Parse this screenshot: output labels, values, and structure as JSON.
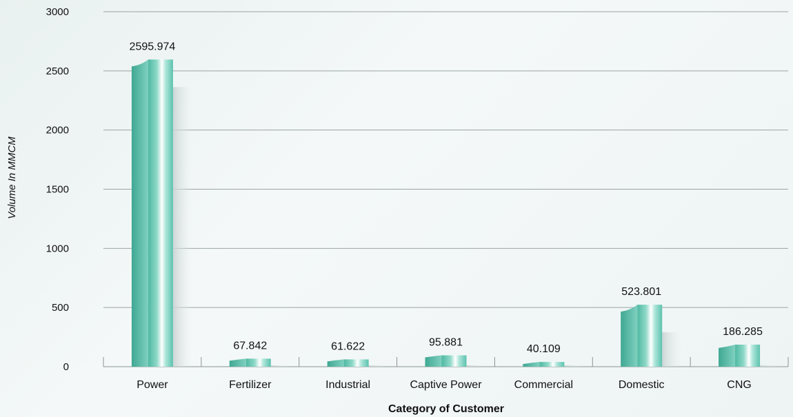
{
  "chart_data": {
    "type": "bar",
    "title": "",
    "xlabel": "Category of Customer",
    "ylabel": "Volume In MMCM",
    "ylim": [
      0,
      3000
    ],
    "yticks": [
      0,
      500,
      1000,
      1500,
      2000,
      2500,
      3000
    ],
    "grid": true,
    "categories": [
      "Power",
      "Fertilizer",
      "Industrial",
      "Captive Power",
      "Commercial",
      "Domestic",
      "CNG"
    ],
    "values": [
      2595.974,
      67.842,
      61.622,
      95.881,
      40.109,
      523.801,
      186.285
    ],
    "data_labels": [
      "2595.974",
      "67.842",
      "61.622",
      "95.881",
      "40.109",
      "523.801",
      "186.285"
    ],
    "bar_color": "#5cc2ae"
  }
}
